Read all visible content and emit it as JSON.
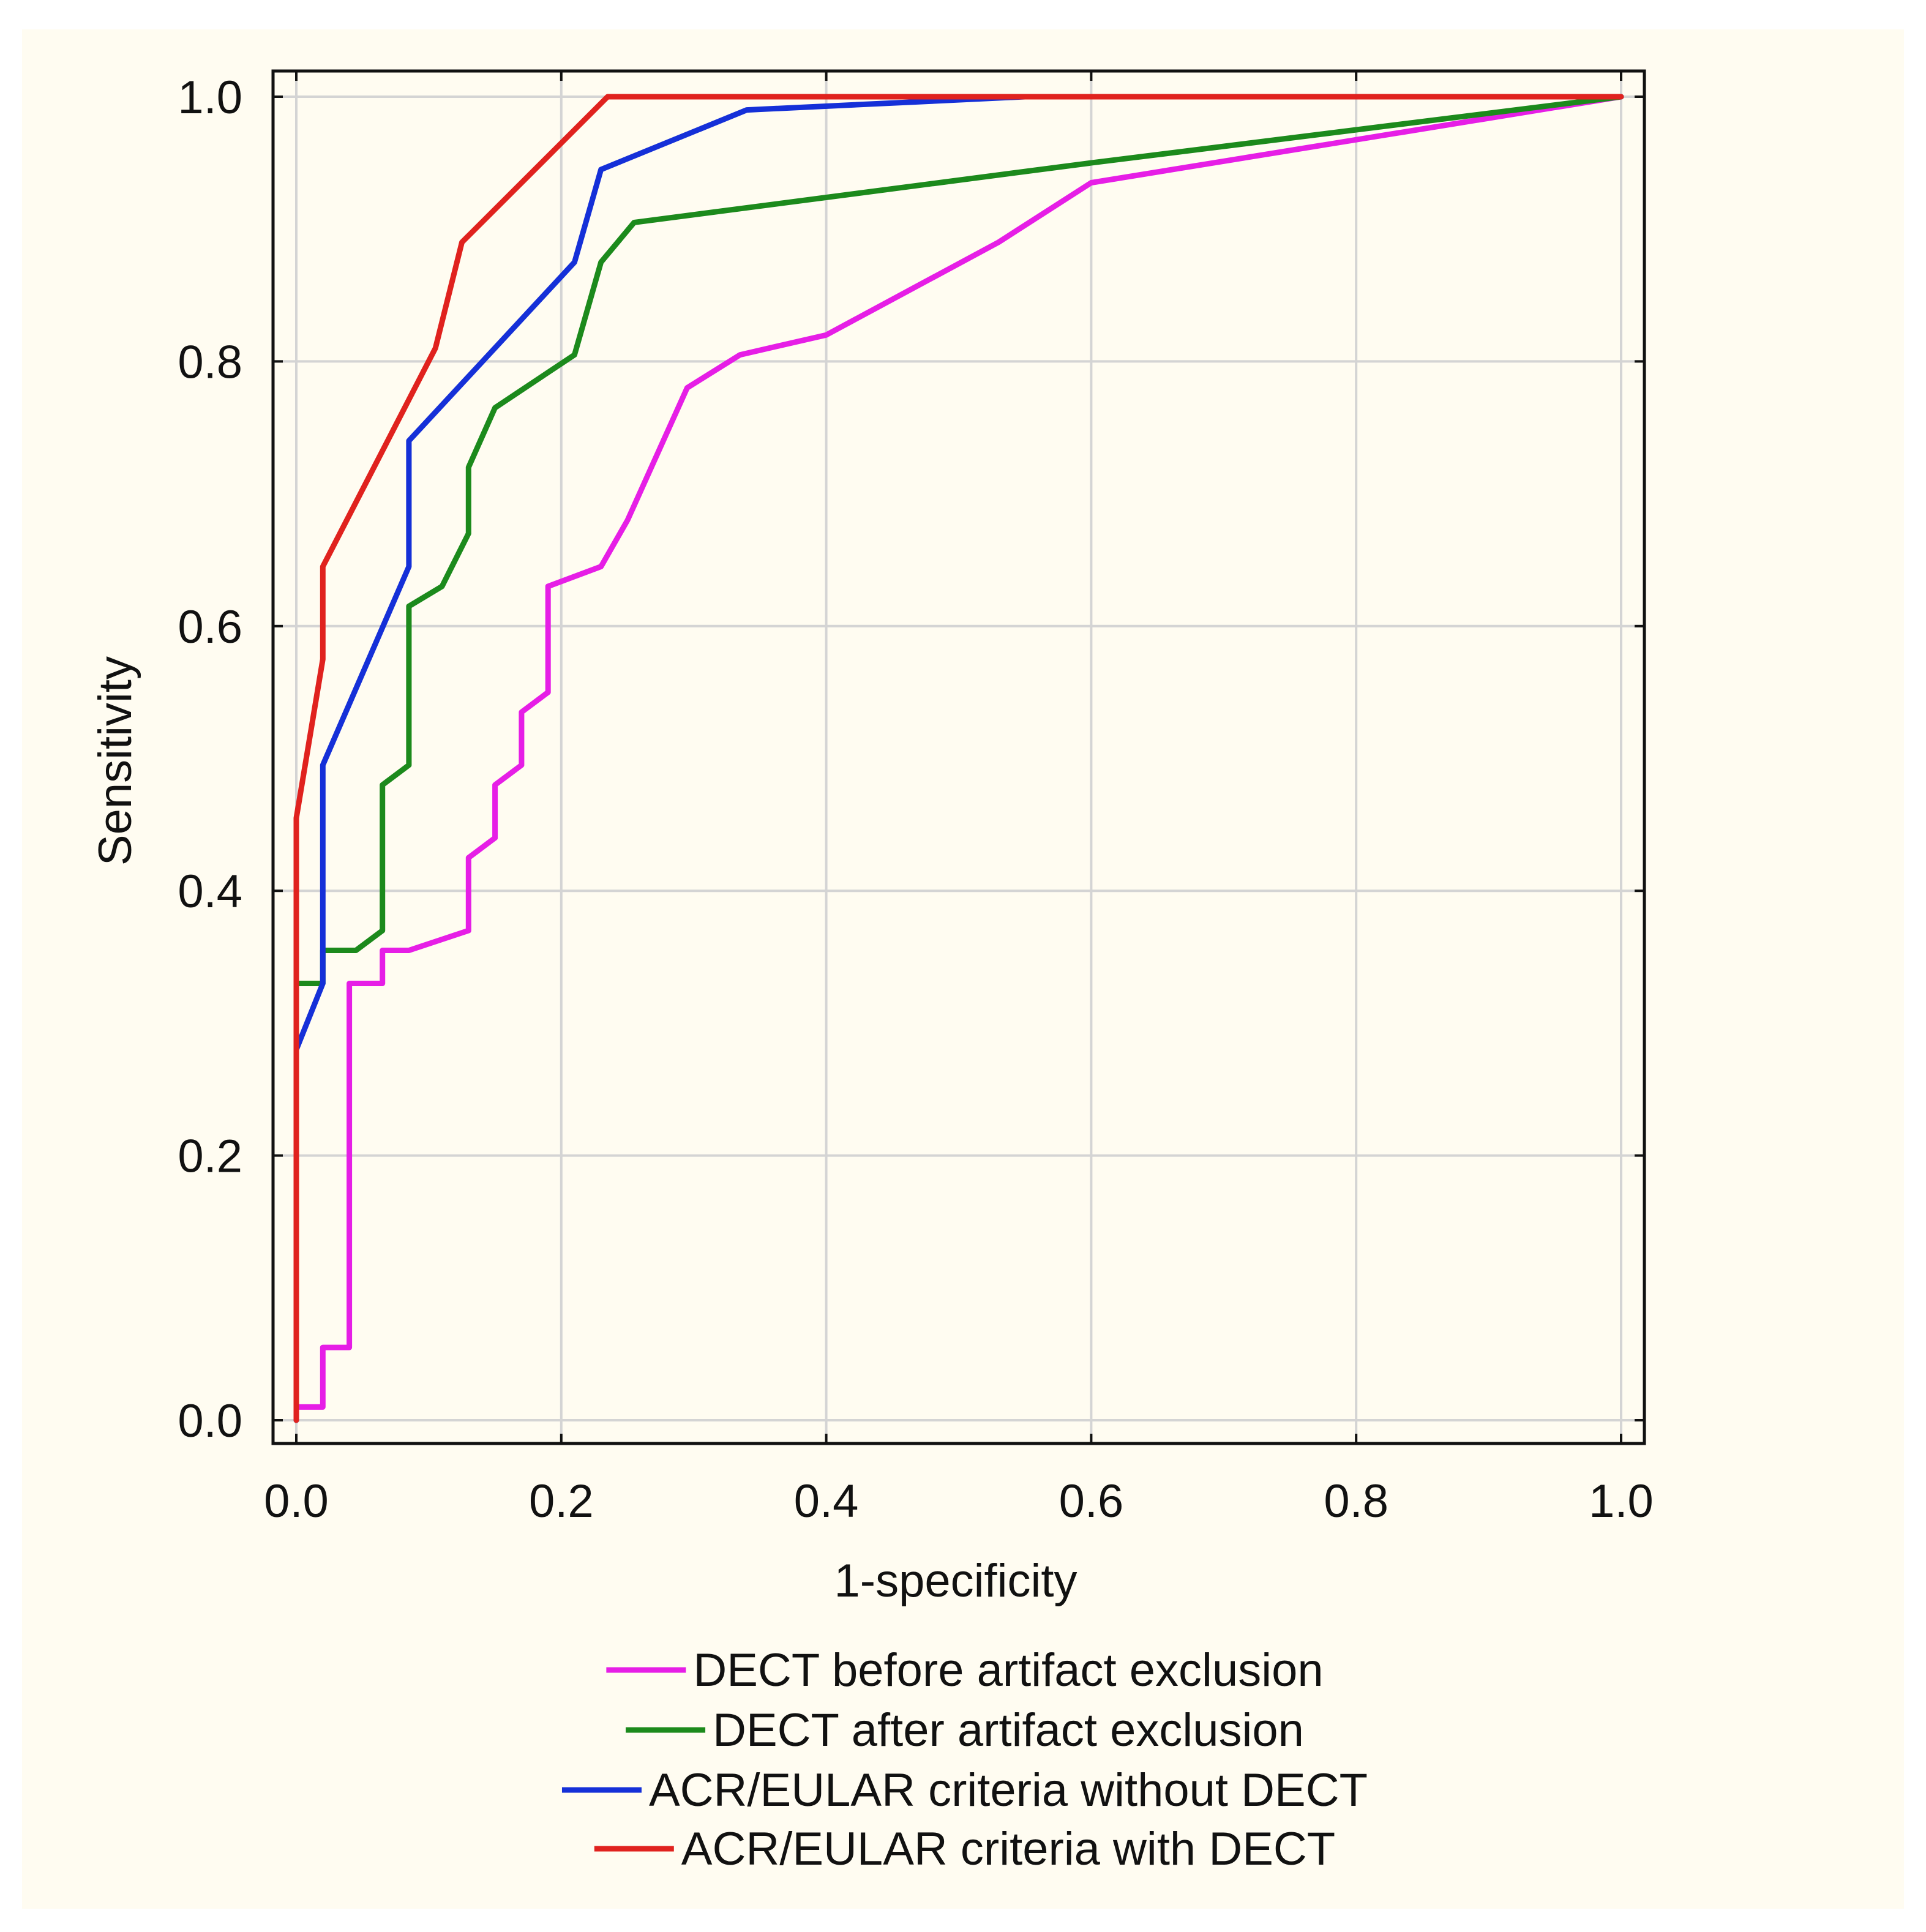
{
  "chart_data": {
    "type": "line",
    "title": "",
    "xlabel": "1-specificity",
    "ylabel": "Sensitivity",
    "xlim": [
      0.0,
      1.0
    ],
    "ylim": [
      0.0,
      1.0
    ],
    "grid": true,
    "xticks": [
      "0.0",
      "0.2",
      "0.4",
      "0.6",
      "0.8",
      "1.0"
    ],
    "yticks": [
      "0.0",
      "0.2",
      "0.4",
      "0.6",
      "0.8",
      "1.0"
    ],
    "legend_position": "bottom-center",
    "series": [
      {
        "name": "DECT before artifact exclusion",
        "color": "#e61ee6",
        "points": [
          [
            0,
            0
          ],
          [
            0,
            0.01
          ],
          [
            0.02,
            0.01
          ],
          [
            0.02,
            0.055
          ],
          [
            0.04,
            0.055
          ],
          [
            0.04,
            0.33
          ],
          [
            0.065,
            0.33
          ],
          [
            0.065,
            0.355
          ],
          [
            0.085,
            0.355
          ],
          [
            0.13,
            0.37
          ],
          [
            0.13,
            0.425
          ],
          [
            0.15,
            0.44
          ],
          [
            0.15,
            0.48
          ],
          [
            0.17,
            0.495
          ],
          [
            0.17,
            0.535
          ],
          [
            0.19,
            0.55
          ],
          [
            0.19,
            0.63
          ],
          [
            0.23,
            0.645
          ],
          [
            0.25,
            0.68
          ],
          [
            0.295,
            0.78
          ],
          [
            0.335,
            0.805
          ],
          [
            0.4,
            0.82
          ],
          [
            0.53,
            0.89
          ],
          [
            0.6,
            0.935
          ],
          [
            1.0,
            1.0
          ]
        ]
      },
      {
        "name": "DECT after artifact exclusion",
        "color": "#1c8a1c",
        "points": [
          [
            0,
            0
          ],
          [
            0,
            0.33
          ],
          [
            0.02,
            0.33
          ],
          [
            0.02,
            0.355
          ],
          [
            0.045,
            0.355
          ],
          [
            0.065,
            0.37
          ],
          [
            0.065,
            0.48
          ],
          [
            0.085,
            0.495
          ],
          [
            0.085,
            0.615
          ],
          [
            0.11,
            0.63
          ],
          [
            0.13,
            0.67
          ],
          [
            0.13,
            0.72
          ],
          [
            0.15,
            0.765
          ],
          [
            0.21,
            0.805
          ],
          [
            0.23,
            0.875
          ],
          [
            0.255,
            0.905
          ],
          [
            0.6,
            0.95
          ],
          [
            1.0,
            1.0
          ]
        ]
      },
      {
        "name": "ACR/EULAR criteria without DECT",
        "color": "#1530d8",
        "points": [
          [
            0,
            0
          ],
          [
            0,
            0.28
          ],
          [
            0.02,
            0.33
          ],
          [
            0.02,
            0.495
          ],
          [
            0.085,
            0.645
          ],
          [
            0.085,
            0.74
          ],
          [
            0.21,
            0.875
          ],
          [
            0.23,
            0.945
          ],
          [
            0.34,
            0.99
          ],
          [
            0.55,
            1.0
          ],
          [
            1.0,
            1.0
          ]
        ]
      },
      {
        "name": "ACR/EULAR criteria with DECT",
        "color": "#e0221e",
        "points": [
          [
            0,
            0
          ],
          [
            0,
            0.455
          ],
          [
            0.02,
            0.575
          ],
          [
            0.02,
            0.645
          ],
          [
            0.105,
            0.81
          ],
          [
            0.125,
            0.89
          ],
          [
            0.195,
            0.96
          ],
          [
            0.235,
            1.0
          ],
          [
            1.0,
            1.0
          ]
        ]
      }
    ]
  }
}
